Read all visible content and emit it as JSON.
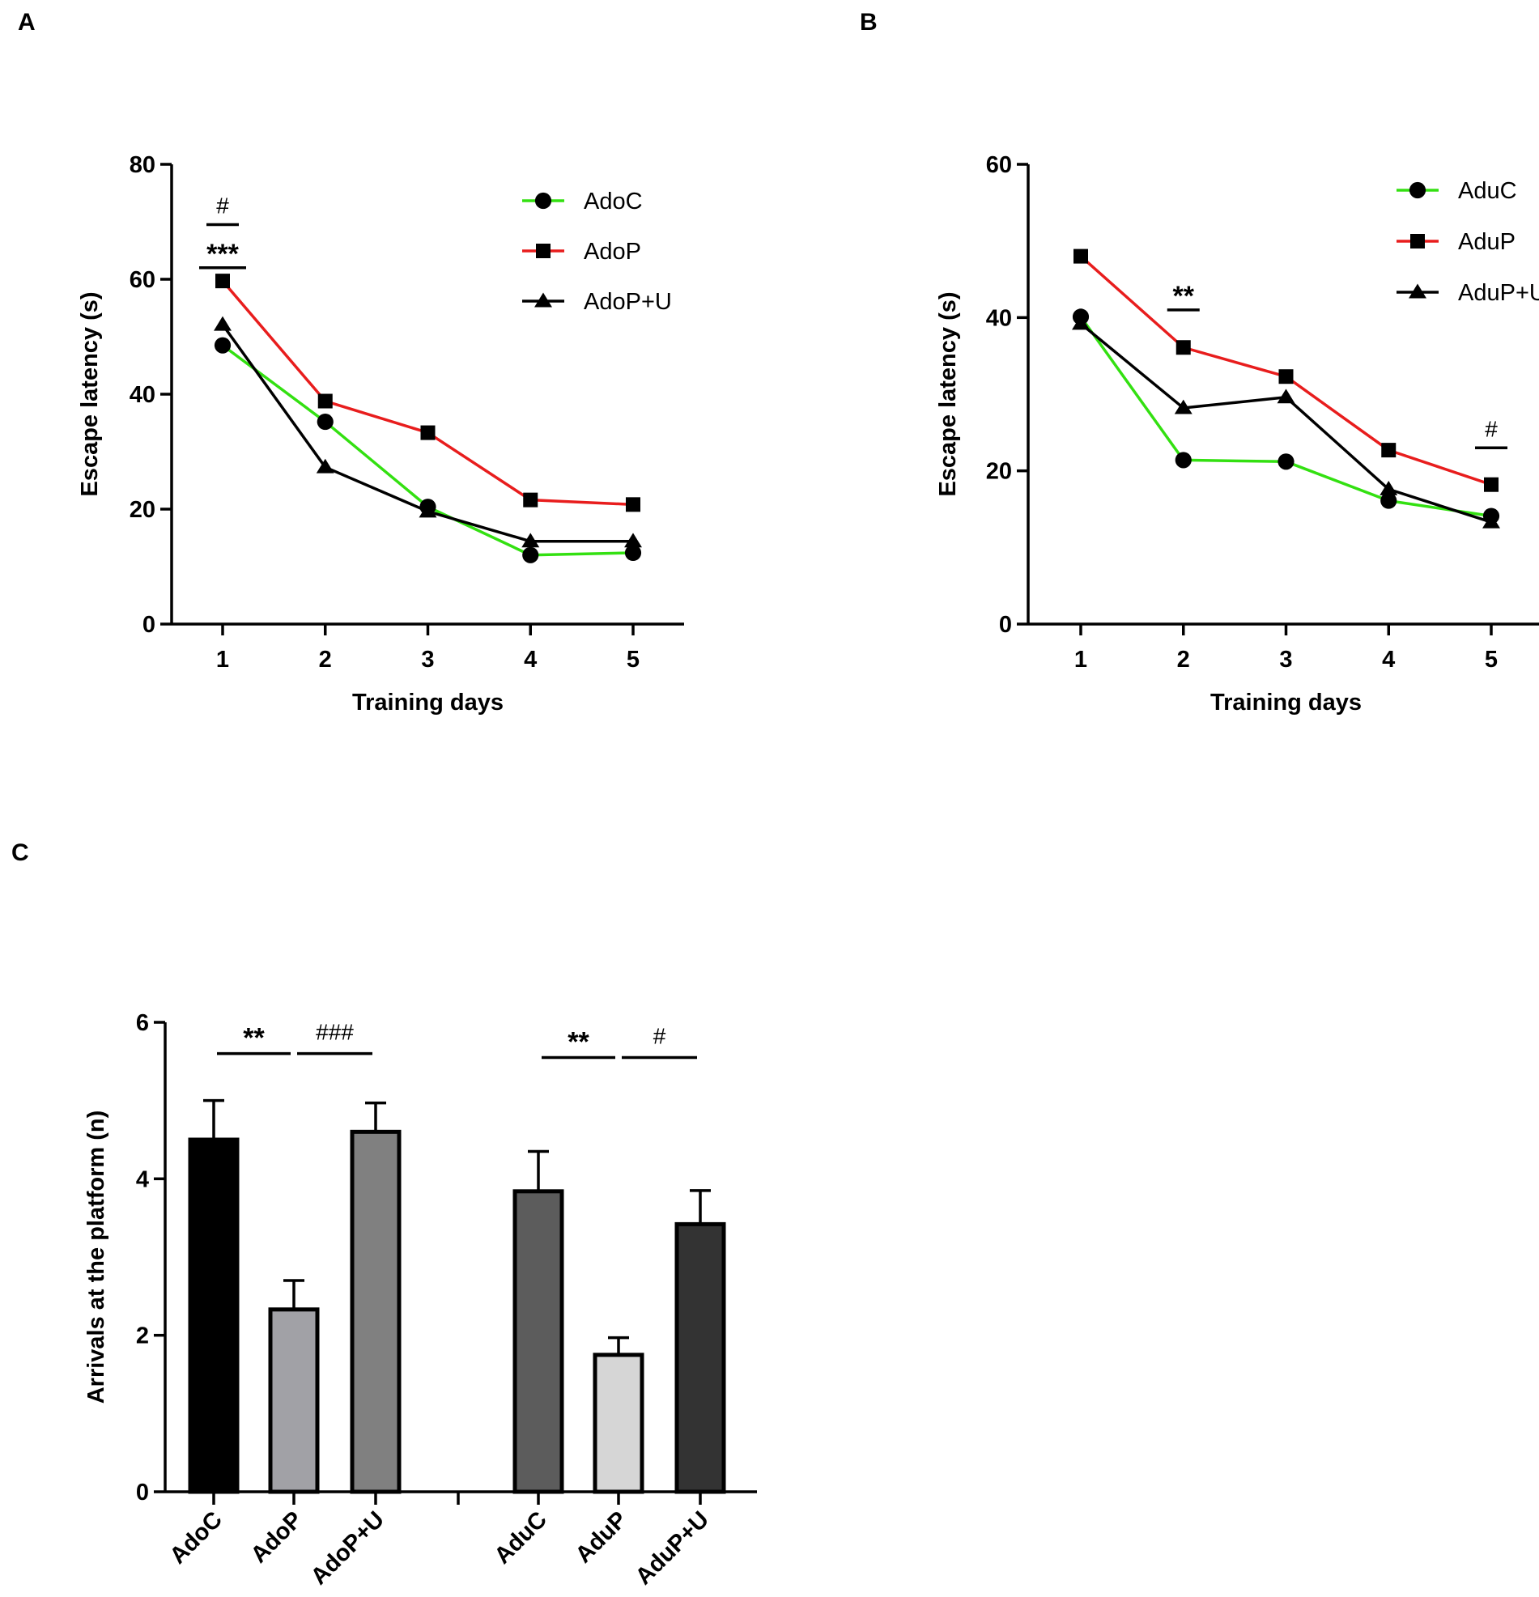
{
  "panels": {
    "A": "A",
    "B": "B",
    "C": "C"
  },
  "chart_data": [
    {
      "id": "A",
      "type": "line",
      "xlabel": "Training days",
      "ylabel": "Escape latency (s)",
      "x": [
        1,
        2,
        3,
        4,
        5
      ],
      "x_tick_labels": [
        "1",
        "2",
        "3",
        "4",
        "5"
      ],
      "ylim": [
        0,
        80
      ],
      "y_ticks": [
        0,
        20,
        40,
        60,
        80
      ],
      "y_tick_labels": [
        "0",
        "20",
        "40",
        "60",
        "80"
      ],
      "series": [
        {
          "name": "AdoC",
          "color": "#33e011",
          "marker": "circle",
          "values": [
            48.5,
            35.2,
            20.4,
            12.0,
            12.4
          ]
        },
        {
          "name": "AdoP",
          "color": "#e81d1d",
          "marker": "square",
          "values": [
            59.7,
            38.8,
            33.3,
            21.6,
            20.8
          ]
        },
        {
          "name": "AdoP+U",
          "color": "#000000",
          "marker": "triangle",
          "values": [
            52.1,
            27.3,
            19.6,
            14.4,
            14.4
          ]
        }
      ],
      "annotations": [
        {
          "text": "***",
          "x": 1,
          "y": 62
        },
        {
          "text": "#",
          "x": 1,
          "y": 69.5
        }
      ]
    },
    {
      "id": "B",
      "type": "line",
      "xlabel": "Training days",
      "ylabel": "Escape latency (s)",
      "x": [
        1,
        2,
        3,
        4,
        5
      ],
      "x_tick_labels": [
        "1",
        "2",
        "3",
        "4",
        "5"
      ],
      "ylim": [
        0,
        60
      ],
      "y_ticks": [
        0,
        20,
        40,
        60
      ],
      "y_tick_labels": [
        "0",
        "20",
        "40",
        "60"
      ],
      "series": [
        {
          "name": "AduC",
          "color": "#33e011",
          "marker": "circle",
          "values": [
            40.1,
            21.4,
            21.2,
            16.1,
            14.1
          ]
        },
        {
          "name": "AduP",
          "color": "#e81d1d",
          "marker": "square",
          "values": [
            48.0,
            36.1,
            32.3,
            22.7,
            18.2
          ]
        },
        {
          "name": "AduP+U",
          "color": "#000000",
          "marker": "triangle",
          "values": [
            39.2,
            28.2,
            29.6,
            17.6,
            13.3
          ]
        }
      ],
      "annotations": [
        {
          "text": "**",
          "x": 2,
          "y": 41
        },
        {
          "text": "#",
          "x": 5,
          "y": 23
        }
      ]
    },
    {
      "id": "C",
      "type": "bar",
      "ylabel": "Arrivals at the platform  (n)",
      "ylim": [
        0,
        6
      ],
      "y_ticks": [
        0,
        2,
        4,
        6
      ],
      "y_tick_labels": [
        "0",
        "2",
        "4",
        "6"
      ],
      "categories": [
        "AdoC",
        "AdoP",
        "AdoP+U",
        "AduC",
        "AduP",
        "AduP+U"
      ],
      "values": [
        4.5,
        2.33,
        4.6,
        3.84,
        1.75,
        3.42
      ],
      "errors": [
        0.5,
        0.37,
        0.37,
        0.51,
        0.22,
        0.43
      ],
      "colors": [
        "#000000",
        "#a1a1a6",
        "#808080",
        "#5c5c5c",
        "#d6d6d6",
        "#333333"
      ],
      "annotations": [
        {
          "text": "**",
          "from": 0,
          "to": 1,
          "y": 5.6
        },
        {
          "text": "###",
          "from": 1,
          "to": 2,
          "y": 5.6
        },
        {
          "text": "**",
          "from": 3,
          "to": 4,
          "y": 5.55
        },
        {
          "text": "#",
          "from": 4,
          "to": 5,
          "y": 5.55
        }
      ]
    }
  ]
}
